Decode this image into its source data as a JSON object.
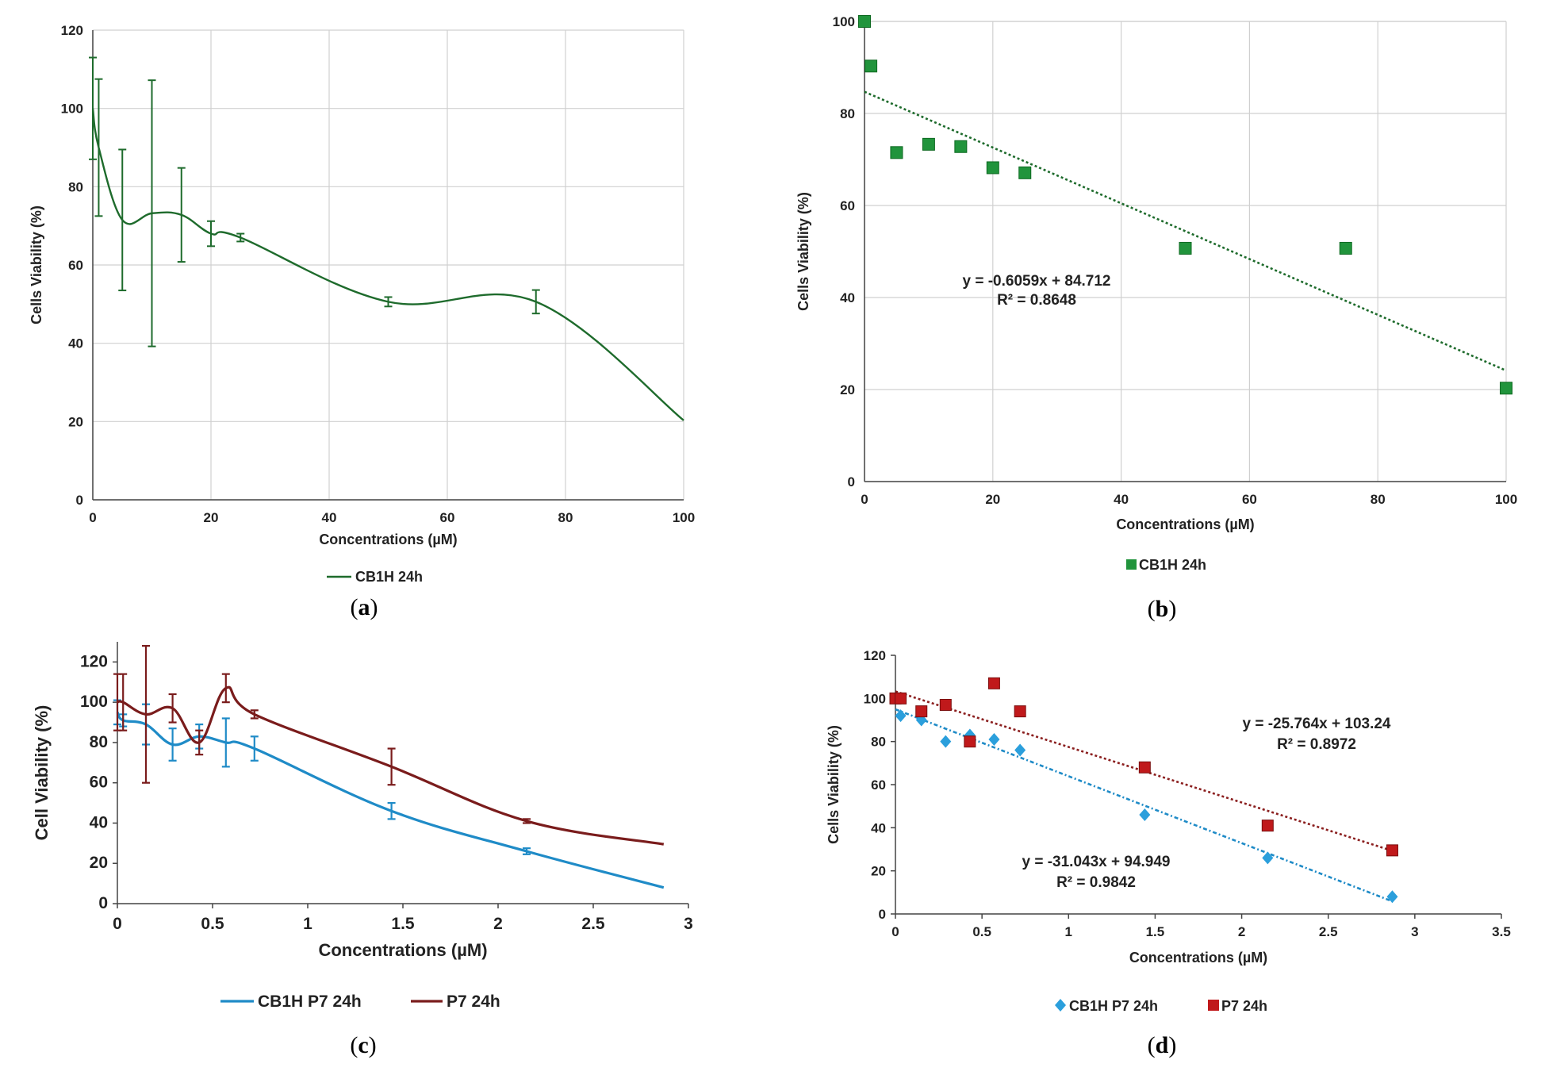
{
  "colors": {
    "dark_green": "#1e6b2c",
    "square_green": "#21943c",
    "eq_green": "#1a8a38",
    "blue": "#1f8bc7",
    "diamond_blue": "#2b9fdc",
    "dark_red": "#7a1c1c",
    "square_red": "#c0191b",
    "eq_red": "#8b1f1f"
  },
  "chart_data": [
    {
      "id": "a",
      "type": "line",
      "panel_label": "a",
      "xlabel": "Concentrations (µM)",
      "ylabel": "Cells Viability (%)",
      "xlim": [
        0,
        100
      ],
      "ylim": [
        0,
        120
      ],
      "xticks": [
        "0",
        "20",
        "40",
        "60",
        "80",
        "100"
      ],
      "yticks": [
        "0",
        "20",
        "40",
        "60",
        "80",
        "100",
        "120"
      ],
      "grid": true,
      "legend_position": "bottom",
      "series": [
        {
          "name": "CB1H 24h",
          "smooth": true,
          "x": [
            0,
            1,
            5,
            10,
            15,
            20,
            25,
            50,
            75,
            100
          ],
          "y": [
            100,
            90,
            71.5,
            73.2,
            72.8,
            68,
            67,
            50.6,
            50.6,
            20.3
          ],
          "err": [
            13,
            17.5,
            18,
            34,
            12,
            3.2,
            1,
            1.2,
            3,
            null
          ]
        }
      ]
    },
    {
      "id": "b",
      "type": "scatter",
      "panel_label": "b",
      "xlabel": "Concentrations (µM)",
      "ylabel": "Cells Viability (%)",
      "xlim": [
        0,
        100
      ],
      "ylim": [
        0,
        100
      ],
      "xticks": [
        "0",
        "20",
        "40",
        "60",
        "80",
        "100"
      ],
      "yticks": [
        "0",
        "20",
        "40",
        "60",
        "80",
        "100"
      ],
      "grid": true,
      "legend_position": "bottom",
      "series": [
        {
          "name": "CB1H 24h",
          "x": [
            0,
            1,
            5,
            10,
            15,
            20,
            25,
            50,
            75,
            100
          ],
          "y": [
            100,
            90.3,
            71.5,
            73.3,
            72.8,
            68.2,
            67.1,
            50.7,
            50.7,
            20.3
          ],
          "trend": {
            "slope": -0.6059,
            "intercept": 84.712,
            "x_range": [
              0,
              100
            ]
          },
          "equation": "y = -0.6059x + 84.712",
          "r2": "R² = 0.8648"
        }
      ]
    },
    {
      "id": "c",
      "type": "line",
      "panel_label": "c",
      "xlabel": "Concentrations (µM)",
      "ylabel": "Cell Viability (%)",
      "xlim": [
        0,
        3
      ],
      "ylim": [
        0,
        130
      ],
      "xticks": [
        "0",
        "0.5",
        "1",
        "1.5",
        "2",
        "2.5",
        "3"
      ],
      "yticks": [
        "0",
        "20",
        "40",
        "60",
        "80",
        "100",
        "120"
      ],
      "grid": false,
      "legend_position": "bottom",
      "series": [
        {
          "name": "CB1H P7 24h",
          "smooth": true,
          "x": [
            0,
            0.03,
            0.15,
            0.29,
            0.43,
            0.57,
            0.72,
            1.44,
            2.15,
            2.87
          ],
          "y": [
            95,
            91,
            89,
            79,
            83,
            80,
            77,
            46,
            26,
            8
          ],
          "err": [
            6,
            3,
            10,
            8,
            6,
            12,
            6,
            4,
            1.5,
            null
          ]
        },
        {
          "name": "P7 24h",
          "smooth": true,
          "x": [
            0,
            0.03,
            0.15,
            0.29,
            0.43,
            0.57,
            0.72,
            1.44,
            2.15,
            2.87
          ],
          "y": [
            100,
            100,
            94,
            97,
            80,
            107,
            94,
            68,
            41,
            29.5
          ],
          "err": [
            14,
            14,
            34,
            7,
            6,
            7,
            2,
            9,
            1,
            null
          ]
        }
      ]
    },
    {
      "id": "d",
      "type": "scatter",
      "panel_label": "d",
      "xlabel": "Concentrations (µM)",
      "ylabel": "Cells Viability (%)",
      "xlim": [
        0,
        3.5
      ],
      "ylim": [
        0,
        120
      ],
      "xticks": [
        "0",
        "0.5",
        "1",
        "1.5",
        "2",
        "2.5",
        "3",
        "3.5"
      ],
      "yticks": [
        "0",
        "20",
        "40",
        "60",
        "80",
        "100",
        "120"
      ],
      "grid": false,
      "legend_position": "bottom",
      "series": [
        {
          "name": "CB1H P7 24h",
          "marker": "diamond",
          "x": [
            0,
            0.03,
            0.15,
            0.29,
            0.43,
            0.57,
            0.72,
            1.44,
            2.15,
            2.87
          ],
          "y": [
            100,
            92,
            90,
            80,
            83,
            81,
            76,
            46,
            26,
            8
          ],
          "trend": {
            "slope": -31.043,
            "intercept": 94.949,
            "x_range": [
              0,
              2.87
            ]
          },
          "equation": "y = -31.043x + 94.949",
          "r2": "R² = 0.9842"
        },
        {
          "name": "P7 24h",
          "marker": "square",
          "x": [
            0,
            0.03,
            0.15,
            0.29,
            0.43,
            0.57,
            0.72,
            1.44,
            2.15,
            2.87
          ],
          "y": [
            100,
            100,
            94,
            97,
            80,
            107,
            94,
            68,
            41,
            29.5
          ],
          "trend": {
            "slope": -25.764,
            "intercept": 103.24,
            "x_range": [
              0,
              2.87
            ]
          },
          "equation": "y = -25.764x + 103.24",
          "r2": "R² = 0.8972"
        }
      ]
    }
  ]
}
